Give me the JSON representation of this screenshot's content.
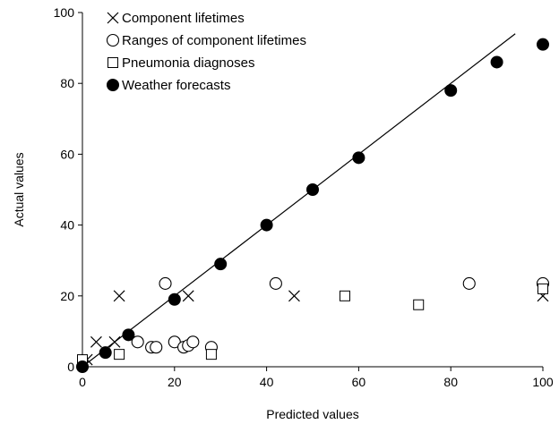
{
  "chart_data": {
    "type": "scatter",
    "title": "",
    "xlabel": "Predicted values",
    "ylabel": "Actual values",
    "xlim": [
      0,
      100
    ],
    "ylim": [
      0,
      100
    ],
    "xticks": [
      "0",
      "20",
      "40",
      "60",
      "80",
      "100"
    ],
    "yticks": [
      "0",
      "20",
      "40",
      "60",
      "80",
      "100"
    ],
    "grid": false,
    "legend_position": "top-left",
    "reference_line": {
      "x": [
        0,
        94
      ],
      "y": [
        0,
        94
      ]
    },
    "series": [
      {
        "name": "Component lifetimes",
        "marker": "cross",
        "points": [
          [
            1,
            2
          ],
          [
            3,
            7
          ],
          [
            7,
            7
          ],
          [
            8,
            20
          ],
          [
            23,
            20
          ],
          [
            46,
            20
          ],
          [
            100,
            20
          ]
        ]
      },
      {
        "name": "Ranges of component lifetimes",
        "marker": "open-circle",
        "points": [
          [
            12,
            7
          ],
          [
            15,
            5.5
          ],
          [
            16,
            5.5
          ],
          [
            18,
            23.5
          ],
          [
            20,
            7
          ],
          [
            22,
            5.5
          ],
          [
            23,
            6
          ],
          [
            24,
            7
          ],
          [
            28,
            5.5
          ],
          [
            42,
            23.5
          ],
          [
            84,
            23.5
          ],
          [
            100,
            23.5
          ]
        ]
      },
      {
        "name": "Pneumonia diagnoses",
        "marker": "open-square",
        "points": [
          [
            0,
            2
          ],
          [
            8,
            3.5
          ],
          [
            28,
            3.5
          ],
          [
            57,
            20
          ],
          [
            73,
            17.5
          ],
          [
            100,
            22
          ]
        ]
      },
      {
        "name": "Weather forecasts",
        "marker": "filled-circle",
        "points": [
          [
            0,
            0
          ],
          [
            5,
            4
          ],
          [
            10,
            9
          ],
          [
            20,
            19
          ],
          [
            30,
            29
          ],
          [
            40,
            40
          ],
          [
            50,
            50
          ],
          [
            60,
            59
          ],
          [
            80,
            78
          ],
          [
            90,
            86
          ],
          [
            100,
            91
          ]
        ]
      }
    ]
  }
}
